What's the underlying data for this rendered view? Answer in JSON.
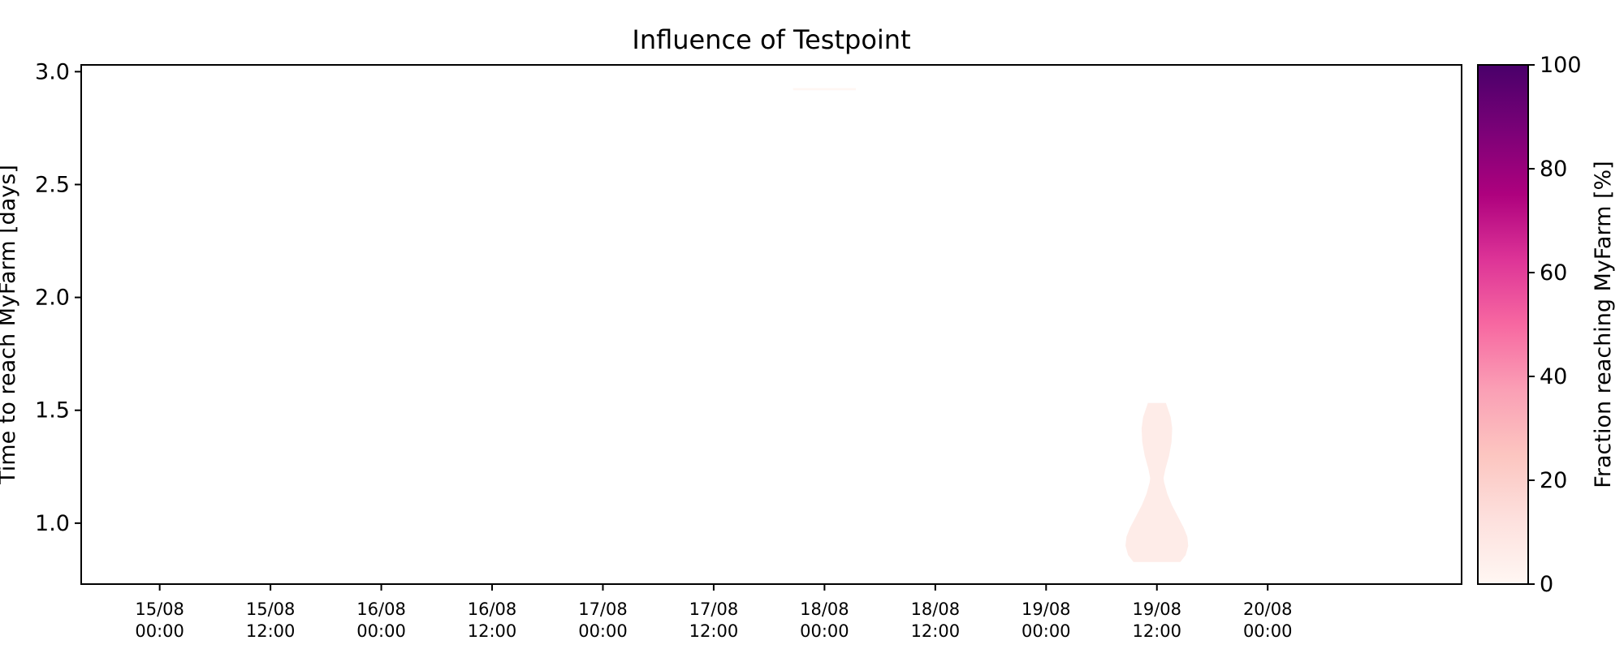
{
  "chart_data": {
    "type": "violin",
    "title": "Influence of Testpoint",
    "ylabel": "Time to reach MyFarm [days]",
    "xlabel": "",
    "ylim": [
      0.73,
      3.03
    ],
    "yticks": [
      {
        "value": 1.0,
        "label": "1.0"
      },
      {
        "value": 1.5,
        "label": "1.5"
      },
      {
        "value": 2.0,
        "label": "2.0"
      },
      {
        "value": 2.5,
        "label": "2.5"
      },
      {
        "value": 3.0,
        "label": "3.0"
      }
    ],
    "xlim": [
      "2023-08-14 15:30",
      "2023-08-20 21:00"
    ],
    "xticks": [
      {
        "value": "2023-08-15 00:00",
        "line1": "15/08",
        "line2": "00:00"
      },
      {
        "value": "2023-08-15 12:00",
        "line1": "15/08",
        "line2": "12:00"
      },
      {
        "value": "2023-08-16 00:00",
        "line1": "16/08",
        "line2": "00:00"
      },
      {
        "value": "2023-08-16 12:00",
        "line1": "16/08",
        "line2": "12:00"
      },
      {
        "value": "2023-08-17 00:00",
        "line1": "17/08",
        "line2": "00:00"
      },
      {
        "value": "2023-08-17 12:00",
        "line1": "17/08",
        "line2": "12:00"
      },
      {
        "value": "2023-08-18 00:00",
        "line1": "18/08",
        "line2": "00:00"
      },
      {
        "value": "2023-08-18 12:00",
        "line1": "18/08",
        "line2": "12:00"
      },
      {
        "value": "2023-08-19 00:00",
        "line1": "19/08",
        "line2": "00:00"
      },
      {
        "value": "2023-08-19 12:00",
        "line1": "19/08",
        "line2": "12:00"
      },
      {
        "value": "2023-08-20 00:00",
        "line1": "20/08",
        "line2": "00:00"
      }
    ],
    "violins": [
      {
        "release": "2023-08-18 00:00",
        "fraction_percent": 0.5,
        "profile": [
          {
            "y": 2.92,
            "density": 1.0
          },
          {
            "y": 2.925,
            "density": 1.0
          }
        ]
      },
      {
        "release": "2023-08-19 12:00",
        "fraction_percent": 6,
        "profile": [
          {
            "y": 0.83,
            "density": 0.75
          },
          {
            "y": 0.86,
            "density": 0.92
          },
          {
            "y": 0.9,
            "density": 1.0
          },
          {
            "y": 0.94,
            "density": 0.97
          },
          {
            "y": 0.98,
            "density": 0.85
          },
          {
            "y": 1.03,
            "density": 0.66
          },
          {
            "y": 1.08,
            "density": 0.47
          },
          {
            "y": 1.13,
            "density": 0.32
          },
          {
            "y": 1.18,
            "density": 0.22
          },
          {
            "y": 1.2,
            "density": 0.2
          },
          {
            "y": 1.24,
            "density": 0.26
          },
          {
            "y": 1.3,
            "density": 0.38
          },
          {
            "y": 1.36,
            "density": 0.46
          },
          {
            "y": 1.42,
            "density": 0.48
          },
          {
            "y": 1.47,
            "density": 0.43
          },
          {
            "y": 1.51,
            "density": 0.33
          },
          {
            "y": 1.53,
            "density": 0.28
          }
        ]
      }
    ],
    "colorbar": {
      "label": "Fraction reaching MyFarm [%]",
      "range": [
        0,
        100
      ],
      "ticks": [
        0,
        20,
        40,
        60,
        80,
        100
      ],
      "colormap": "RdPu",
      "colors": [
        "#fff7f3",
        "#fde0dd",
        "#fcc5c0",
        "#fa9fb5",
        "#f768a1",
        "#dd3497",
        "#ae017e",
        "#7a0177",
        "#49006a"
      ]
    }
  }
}
